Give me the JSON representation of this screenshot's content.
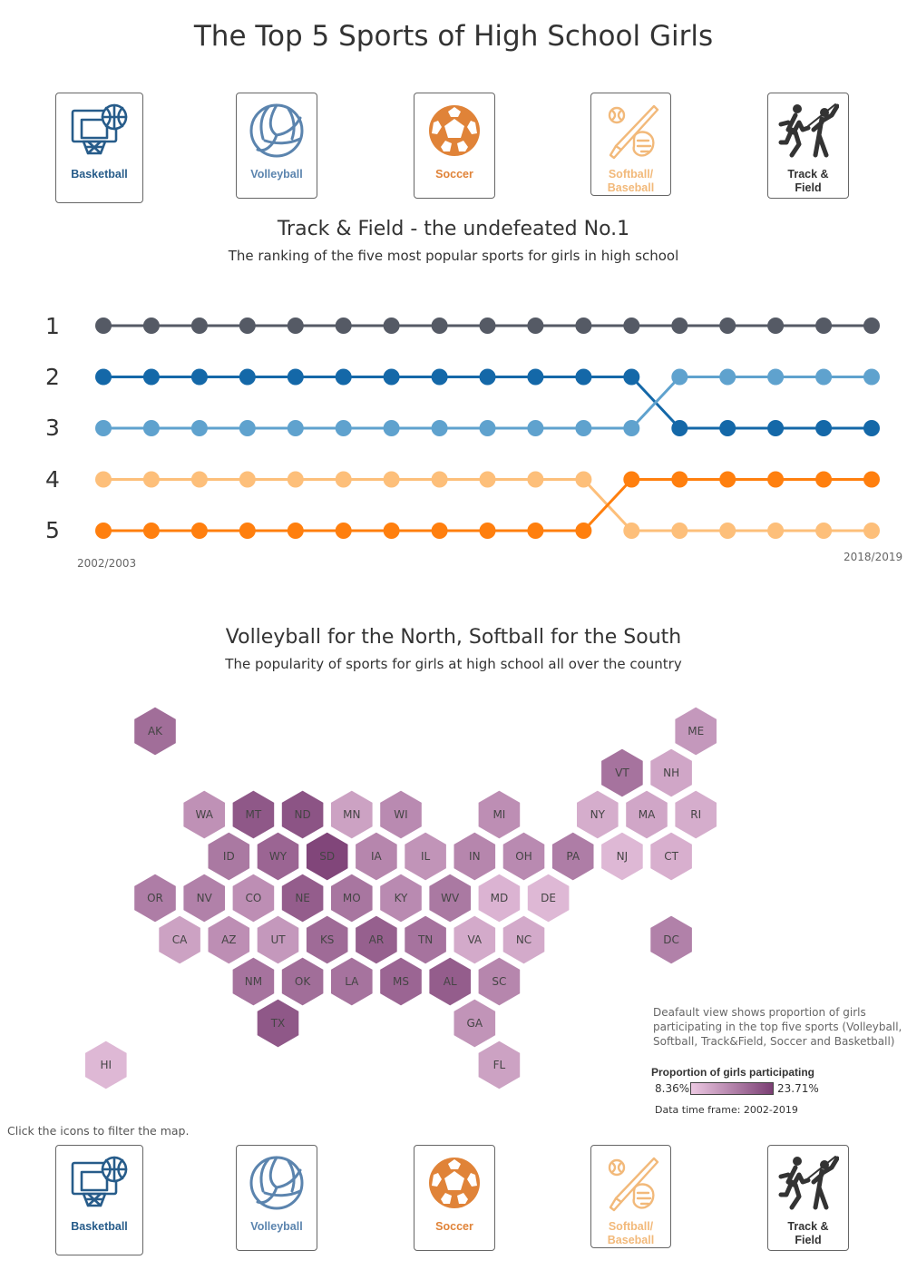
{
  "title": "The Top 5 Sports of High School Girls",
  "colors": {
    "basketball": "#275C8A",
    "volleyball": "#5B84AE",
    "soccer": "#E08338",
    "softball": "#F2B97A",
    "track": "#333333",
    "rank1": "#555A65",
    "rank2": "#1468A8",
    "rank3": "#5FA2CE",
    "rank4": "#FDBF7A",
    "rank5": "#FF7F0E",
    "map_low": "#ECC8E2",
    "map_high": "#7B3F74"
  },
  "icons_top": [
    {
      "name": "Basketball",
      "icon": "basketball-icon"
    },
    {
      "name": "Volleyball",
      "icon": "volleyball-icon"
    },
    {
      "name": "Soccer",
      "icon": "soccer-icon"
    },
    {
      "name": "Softball/ Baseball",
      "line1": "Softball/",
      "line2": "Baseball",
      "icon": "softball-icon"
    },
    {
      "name": "Track & Field",
      "line1": "Track &",
      "line2": "Field",
      "icon": "track-field-icon"
    }
  ],
  "bump": {
    "title": "Track & Field - the undefeated No.1",
    "subtitle": "The ranking of the five most popular sports for girls in high school",
    "start_label": "2002/2003",
    "end_label": "2018/2019"
  },
  "map": {
    "title": "Volleyball for the North, Softball for the South",
    "subtitle": "The popularity of sports for girls at high school all over the country",
    "note": "Deafault view shows proportion of girls participating in  the top five sports (Volleyball, Softball, Track&Field, Soccer and Basketball)",
    "note_lines": [
      "Deafault view shows proportion of girls",
      "participating in  the top five sports (Volleyball,",
      "Softball, Track&Field, Soccer and Basketball)"
    ],
    "legend_title": "Proportion of girls participating",
    "legend_min": "8.36%",
    "legend_max": "23.71%",
    "timeframe": "Data time frame: 2002-2019",
    "click_note": "Click the icons to filter the map."
  },
  "chart_data": [
    {
      "type": "line",
      "title": "Track & Field - the undefeated No.1",
      "subtitle": "The ranking of the five most popular sports for girls in high school",
      "x_count": 17,
      "x_start": "2002/2003",
      "x_end": "2018/2019",
      "y_ticks": [
        "1",
        "2",
        "3",
        "4",
        "5"
      ],
      "y_inverted": true,
      "series": [
        {
          "color": "#555A65",
          "values": [
            1,
            1,
            1,
            1,
            1,
            1,
            1,
            1,
            1,
            1,
            1,
            1,
            1,
            1,
            1,
            1,
            1
          ]
        },
        {
          "color": "#1468A8",
          "values": [
            2,
            2,
            2,
            2,
            2,
            2,
            2,
            2,
            2,
            2,
            2,
            2,
            3,
            3,
            3,
            3,
            3
          ]
        },
        {
          "color": "#5FA2CE",
          "values": [
            3,
            3,
            3,
            3,
            3,
            3,
            3,
            3,
            3,
            3,
            3,
            3,
            2,
            2,
            2,
            2,
            2
          ]
        },
        {
          "color": "#FDBF7A",
          "values": [
            4,
            4,
            4,
            4,
            4,
            4,
            4,
            4,
            4,
            4,
            4,
            5,
            5,
            5,
            5,
            5,
            5
          ]
        },
        {
          "color": "#FF7F0E",
          "values": [
            5,
            5,
            5,
            5,
            5,
            5,
            5,
            5,
            5,
            5,
            5,
            4,
            4,
            4,
            4,
            4,
            4
          ]
        }
      ]
    },
    {
      "type": "heatmap",
      "title": "Volleyball for the North, Softball for the South",
      "value_range": [
        8.36,
        23.71
      ],
      "unit": "%",
      "states": [
        {
          "abbr": "AK",
          "row": 0,
          "col": 1,
          "v": 0.66
        },
        {
          "abbr": "ME",
          "row": 0,
          "col": 12,
          "v": 0.35
        },
        {
          "abbr": "VT",
          "row": 1,
          "col": 10,
          "v": 0.62
        },
        {
          "abbr": "NH",
          "row": 1,
          "col": 11,
          "v": 0.25
        },
        {
          "abbr": "WA",
          "row": 2,
          "col": 2,
          "v": 0.4
        },
        {
          "abbr": "MT",
          "row": 2,
          "col": 3,
          "v": 0.82
        },
        {
          "abbr": "ND",
          "row": 2,
          "col": 4,
          "v": 0.85
        },
        {
          "abbr": "MN",
          "row": 2,
          "col": 5,
          "v": 0.28
        },
        {
          "abbr": "WI",
          "row": 2,
          "col": 6,
          "v": 0.45
        },
        {
          "abbr": "MI",
          "row": 2,
          "col": 8,
          "v": 0.42
        },
        {
          "abbr": "NY",
          "row": 2,
          "col": 10,
          "v": 0.2
        },
        {
          "abbr": "MA",
          "row": 2,
          "col": 11,
          "v": 0.25
        },
        {
          "abbr": "RI",
          "row": 2,
          "col": 12,
          "v": 0.2
        },
        {
          "abbr": "ID",
          "row": 3,
          "col": 2,
          "v": 0.58
        },
        {
          "abbr": "WY",
          "row": 3,
          "col": 3,
          "v": 0.72
        },
        {
          "abbr": "SD",
          "row": 3,
          "col": 4,
          "v": 0.95
        },
        {
          "abbr": "IA",
          "row": 3,
          "col": 5,
          "v": 0.48
        },
        {
          "abbr": "IL",
          "row": 3,
          "col": 6,
          "v": 0.38
        },
        {
          "abbr": "IN",
          "row": 3,
          "col": 7,
          "v": 0.48
        },
        {
          "abbr": "OH",
          "row": 3,
          "col": 8,
          "v": 0.45
        },
        {
          "abbr": "PA",
          "row": 3,
          "col": 9,
          "v": 0.55
        },
        {
          "abbr": "NJ",
          "row": 3,
          "col": 10,
          "v": 0.12
        },
        {
          "abbr": "CT",
          "row": 3,
          "col": 11,
          "v": 0.18
        },
        {
          "abbr": "OR",
          "row": 4,
          "col": 1,
          "v": 0.55
        },
        {
          "abbr": "NV",
          "row": 4,
          "col": 2,
          "v": 0.52
        },
        {
          "abbr": "CO",
          "row": 4,
          "col": 3,
          "v": 0.42
        },
        {
          "abbr": "NE",
          "row": 4,
          "col": 4,
          "v": 0.78
        },
        {
          "abbr": "MO",
          "row": 4,
          "col": 5,
          "v": 0.6
        },
        {
          "abbr": "KY",
          "row": 4,
          "col": 6,
          "v": 0.45
        },
        {
          "abbr": "WV",
          "row": 4,
          "col": 7,
          "v": 0.58
        },
        {
          "abbr": "MD",
          "row": 4,
          "col": 8,
          "v": 0.15
        },
        {
          "abbr": "DE",
          "row": 4,
          "col": 9,
          "v": 0.12
        },
        {
          "abbr": "CA",
          "row": 5,
          "col": 1,
          "v": 0.28
        },
        {
          "abbr": "AZ",
          "row": 5,
          "col": 2,
          "v": 0.42
        },
        {
          "abbr": "UT",
          "row": 5,
          "col": 3,
          "v": 0.35
        },
        {
          "abbr": "KS",
          "row": 5,
          "col": 4,
          "v": 0.68
        },
        {
          "abbr": "AR",
          "row": 5,
          "col": 5,
          "v": 0.76
        },
        {
          "abbr": "TN",
          "row": 5,
          "col": 6,
          "v": 0.62
        },
        {
          "abbr": "VA",
          "row": 5,
          "col": 7,
          "v": 0.22
        },
        {
          "abbr": "NC",
          "row": 5,
          "col": 8,
          "v": 0.22
        },
        {
          "abbr": "DC",
          "row": 5,
          "col": 11,
          "v": 0.52
        },
        {
          "abbr": "NM",
          "row": 6,
          "col": 3,
          "v": 0.62
        },
        {
          "abbr": "OK",
          "row": 6,
          "col": 4,
          "v": 0.66
        },
        {
          "abbr": "LA",
          "row": 6,
          "col": 5,
          "v": 0.62
        },
        {
          "abbr": "MS",
          "row": 6,
          "col": 6,
          "v": 0.72
        },
        {
          "abbr": "AL",
          "row": 6,
          "col": 7,
          "v": 0.78
        },
        {
          "abbr": "SC",
          "row": 6,
          "col": 8,
          "v": 0.48
        },
        {
          "abbr": "TX",
          "row": 7,
          "col": 3,
          "v": 0.82
        },
        {
          "abbr": "GA",
          "row": 7,
          "col": 7,
          "v": 0.38
        },
        {
          "abbr": "HI",
          "row": 8,
          "col": 0,
          "v": 0.12
        },
        {
          "abbr": "FL",
          "row": 8,
          "col": 8,
          "v": 0.28
        }
      ]
    }
  ]
}
